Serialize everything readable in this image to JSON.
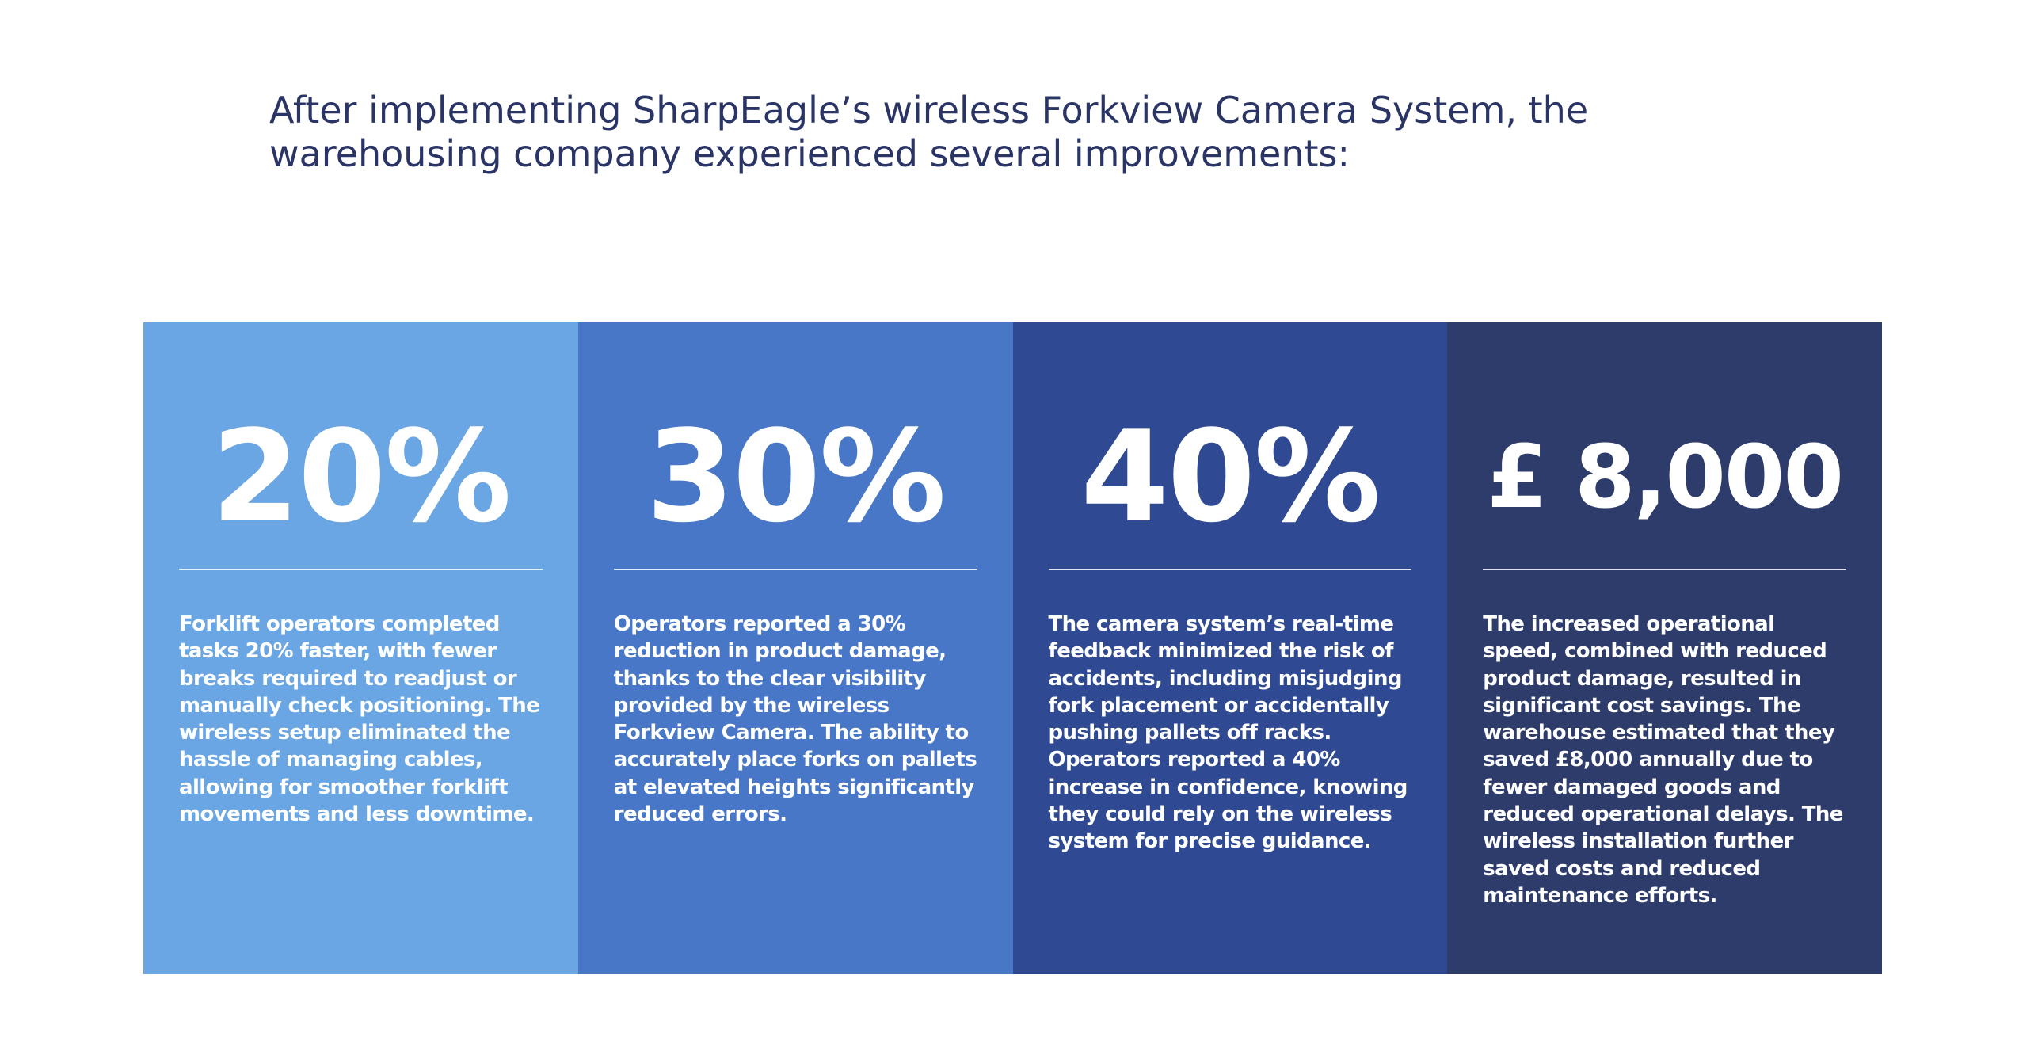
{
  "intro": {
    "text": "After implementing SharpEagle’s wireless Forkview Camera System, the warehousing company experienced several improvements:"
  },
  "stats": [
    {
      "value": "20%",
      "color": "#6aa6e3",
      "description": "Forklift operators completed tasks 20% faster, with fewer breaks required to readjust or manually check positioning. The wireless setup eliminated the hassle of managing cables, allowing for smoother forklift movements and less downtime."
    },
    {
      "value": "30%",
      "color": "#4877c8",
      "description": "Operators reported a 30% reduction in product damage, thanks to the clear visibility provided by the wireless Forkview Camera. The ability to accurately place forks on pallets at elevated heights significantly reduced errors."
    },
    {
      "value": "40%",
      "color": "#2f4a92",
      "description": "The camera system’s real-time feedback minimized the risk of accidents, including misjudging fork placement or accidentally pushing pallets off racks. Operators reported a 40% increase in confidence, knowing they could rely on the wireless system for precise guidance."
    },
    {
      "value": "£ 8,000",
      "color": "#2e3c6c",
      "description": "The increased operational speed, combined with reduced product damage, resulted in significant cost savings. The warehouse estimated that they saved £8,000 annually due to fewer damaged goods and reduced operational delays. The wireless installation further saved costs and reduced maintenance efforts."
    }
  ]
}
